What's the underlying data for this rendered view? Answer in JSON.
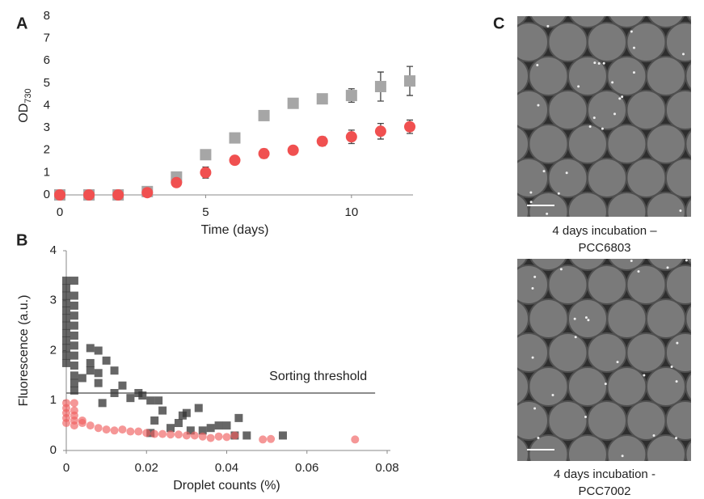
{
  "panel_labels": [
    "A",
    "B",
    "C"
  ],
  "chart_data": [
    {
      "type": "scatter",
      "xlabel": "Time (days)",
      "ylabel": "OD",
      "ylabel_subscript": "730",
      "xlim": [
        0,
        12
      ],
      "xticks": [
        0,
        5,
        10
      ],
      "ylim": [
        0,
        8
      ],
      "yticks": [
        0,
        1,
        2,
        3,
        4,
        5,
        6,
        7,
        8
      ],
      "x": [
        0,
        1,
        2,
        3,
        4,
        5,
        6,
        7,
        8,
        9,
        10,
        11,
        12
      ],
      "series": [
        {
          "color": "#a6a6a6",
          "marker": "square",
          "values": [
            0,
            0,
            0,
            0.15,
            0.8,
            1.8,
            2.55,
            3.55,
            4.1,
            4.3,
            4.45,
            4.85,
            5.1
          ],
          "errors": [
            null,
            null,
            null,
            null,
            0.2,
            null,
            null,
            null,
            null,
            0.1,
            0.3,
            0.65,
            0.65
          ]
        },
        {
          "color": "#f05050",
          "marker": "circle",
          "values": [
            0,
            0,
            0,
            0.1,
            0.55,
            1.0,
            1.55,
            1.85,
            2.0,
            2.4,
            2.6,
            2.85,
            3.05
          ],
          "errors": [
            null,
            null,
            null,
            null,
            null,
            0.25,
            null,
            0.2,
            null,
            0.2,
            0.3,
            0.35,
            0.3
          ]
        }
      ]
    },
    {
      "type": "scatter",
      "xlabel": "Droplet counts (%)",
      "ylabel": "Fluorescence (a.u.)",
      "xlim": [
        0,
        0.08
      ],
      "xticks": [
        0,
        0.02,
        0.04,
        0.06,
        0.08
      ],
      "ylim": [
        0,
        4
      ],
      "yticks": [
        0,
        1,
        2,
        3,
        4
      ],
      "threshold": {
        "label": "Sorting threshold",
        "value": 1.15,
        "x_end": 0.077
      },
      "series": [
        {
          "color": "#333333",
          "marker": "square",
          "x": [
            0,
            0,
            0,
            0,
            0,
            0,
            0,
            0,
            0,
            0,
            0,
            0,
            0.002,
            0.002,
            0.002,
            0.002,
            0.002,
            0.002,
            0.002,
            0.002,
            0.002,
            0.002,
            0.002,
            0.002,
            0.004,
            0.006,
            0.006,
            0.006,
            0.008,
            0.008,
            0.008,
            0.01,
            0.009,
            0.012,
            0.012,
            0.014,
            0.016,
            0.018,
            0.019,
            0.021,
            0.022,
            0.023,
            0.024,
            0.026,
            0.028,
            0.029,
            0.03,
            0.031,
            0.033,
            0.034,
            0.036,
            0.038,
            0.04,
            0.042,
            0.043,
            0.045,
            0.054,
            0.021
          ],
          "values": [
            1.75,
            1.9,
            2.05,
            2.2,
            2.35,
            2.5,
            2.65,
            2.8,
            2.95,
            3.1,
            3.25,
            3.4,
            1.2,
            1.35,
            1.5,
            1.7,
            1.9,
            2.1,
            2.3,
            2.5,
            2.7,
            2.9,
            3.1,
            3.4,
            1.45,
            1.75,
            1.6,
            2.05,
            1.55,
            1.35,
            2.0,
            1.8,
            0.95,
            1.6,
            1.15,
            1.3,
            1.05,
            1.15,
            1.1,
            1.0,
            0.6,
            1.0,
            0.8,
            0.45,
            0.55,
            0.7,
            0.75,
            0.4,
            0.85,
            0.4,
            0.45,
            0.5,
            0.5,
            0.3,
            0.65,
            0.3,
            0.3,
            0.35
          ]
        },
        {
          "color": "#f06060",
          "marker": "circle",
          "x": [
            0,
            0,
            0,
            0,
            0,
            0.002,
            0.002,
            0.002,
            0.002,
            0.002,
            0.004,
            0.004,
            0.006,
            0.008,
            0.01,
            0.012,
            0.014,
            0.016,
            0.018,
            0.02,
            0.022,
            0.024,
            0.026,
            0.028,
            0.03,
            0.032,
            0.034,
            0.036,
            0.038,
            0.04,
            0.042,
            0.049,
            0.051,
            0.072
          ],
          "values": [
            0.55,
            0.65,
            0.75,
            0.85,
            0.95,
            0.5,
            0.6,
            0.7,
            0.8,
            0.95,
            0.6,
            0.55,
            0.5,
            0.45,
            0.42,
            0.4,
            0.42,
            0.38,
            0.38,
            0.35,
            0.33,
            0.33,
            0.32,
            0.32,
            0.3,
            0.3,
            0.28,
            0.25,
            0.28,
            0.27,
            0.3,
            0.22,
            0.23,
            0.22
          ]
        }
      ]
    }
  ],
  "images": [
    {
      "caption": [
        "4 days incubation –",
        "PCC6803"
      ]
    },
    {
      "caption": [
        "4 days incubation -",
        "PCC7002"
      ]
    }
  ]
}
